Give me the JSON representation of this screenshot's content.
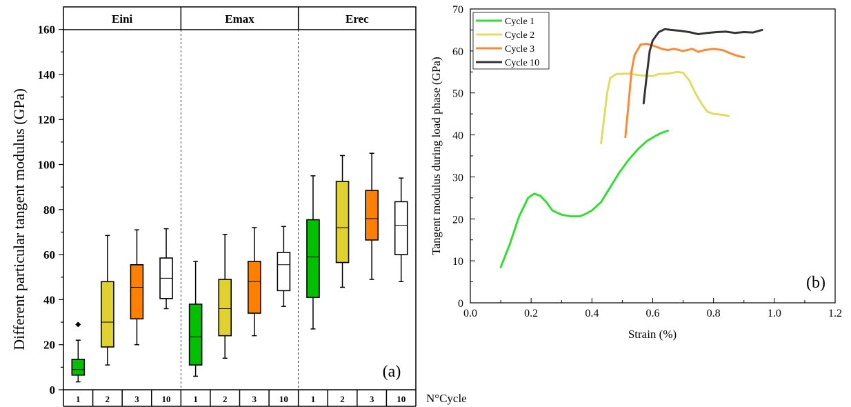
{
  "chart_data": [
    {
      "type": "box",
      "panel_label": "(a)",
      "ylabel": "Different particular tangent modulus (GPa)",
      "xlabel": "N°Cycle",
      "ylim": [
        0,
        170
      ],
      "yticks": [
        0,
        20,
        40,
        60,
        80,
        100,
        120,
        140,
        160
      ],
      "groups": [
        "Eini",
        "Emax",
        "Erec"
      ],
      "cycles": [
        "1",
        "2",
        "3",
        "10"
      ],
      "colors": {
        "1": "#00c000",
        "2": "#e0d030",
        "3": "#ff7f00",
        "10": "#ffffff"
      },
      "boxes": [
        {
          "group": "Eini",
          "cycle": "1",
          "whisker_low": 3.5,
          "q1": 6.5,
          "median": 9,
          "q3": 13.5,
          "whisker_high": 22,
          "outliers": [
            29
          ]
        },
        {
          "group": "Eini",
          "cycle": "2",
          "whisker_low": 11,
          "q1": 19,
          "median": 30,
          "q3": 48,
          "whisker_high": 68.5,
          "outliers": []
        },
        {
          "group": "Eini",
          "cycle": "3",
          "whisker_low": 20,
          "q1": 31.5,
          "median": 45.5,
          "q3": 55.5,
          "whisker_high": 71,
          "outliers": []
        },
        {
          "group": "Eini",
          "cycle": "10",
          "whisker_low": 36,
          "q1": 40.5,
          "median": 49.5,
          "q3": 58.5,
          "whisker_high": 71.5,
          "outliers": []
        },
        {
          "group": "Emax",
          "cycle": "1",
          "whisker_low": 6,
          "q1": 11,
          "median": 23.5,
          "q3": 38,
          "whisker_high": 57,
          "outliers": []
        },
        {
          "group": "Emax",
          "cycle": "2",
          "whisker_low": 14,
          "q1": 24,
          "median": 36,
          "q3": 49,
          "whisker_high": 69,
          "outliers": []
        },
        {
          "group": "Emax",
          "cycle": "3",
          "whisker_low": 24,
          "q1": 34,
          "median": 48,
          "q3": 57,
          "whisker_high": 72,
          "outliers": []
        },
        {
          "group": "Emax",
          "cycle": "10",
          "whisker_low": 37,
          "q1": 44,
          "median": 55.5,
          "q3": 61,
          "whisker_high": 72.5,
          "outliers": []
        },
        {
          "group": "Erec",
          "cycle": "1",
          "whisker_low": 27,
          "q1": 41,
          "median": 59,
          "q3": 75.5,
          "whisker_high": 95,
          "outliers": []
        },
        {
          "group": "Erec",
          "cycle": "2",
          "whisker_low": 45.5,
          "q1": 56.5,
          "median": 72,
          "q3": 92.5,
          "whisker_high": 104,
          "outliers": []
        },
        {
          "group": "Erec",
          "cycle": "3",
          "whisker_low": 49,
          "q1": 66.5,
          "median": 76,
          "q3": 88.5,
          "whisker_high": 105,
          "outliers": []
        },
        {
          "group": "Erec",
          "cycle": "10",
          "whisker_low": 48,
          "q1": 60,
          "median": 73,
          "q3": 83.5,
          "whisker_high": 94,
          "outliers": []
        }
      ]
    },
    {
      "type": "line",
      "panel_label": "(b)",
      "xlabel": "Strain (%)",
      "ylabel": "Tangent modulus during load phase (GPa)",
      "xlim": [
        0,
        1.2
      ],
      "ylim": [
        0,
        70
      ],
      "xticks": [
        "0.0",
        "0.2",
        "0.4",
        "0.6",
        "0.8",
        "1.0",
        "1.2"
      ],
      "yticks": [
        "0",
        "10",
        "20",
        "30",
        "40",
        "50",
        "60",
        "70"
      ],
      "legend_position": "top-left",
      "series": [
        {
          "name": "Cycle 1",
          "color": "#33dd33",
          "x": [
            0.1,
            0.13,
            0.16,
            0.19,
            0.21,
            0.23,
            0.25,
            0.27,
            0.3,
            0.33,
            0.36,
            0.38,
            0.4,
            0.43,
            0.46,
            0.49,
            0.52,
            0.55,
            0.58,
            0.61,
            0.63,
            0.65
          ],
          "y": [
            8.5,
            14,
            20.5,
            25,
            26,
            25.5,
            24,
            22,
            21,
            20.6,
            20.6,
            21.2,
            22,
            24,
            27.5,
            31,
            34,
            36.5,
            38.5,
            39.8,
            40.5,
            41
          ]
        },
        {
          "name": "Cycle 2",
          "color": "#e0dc60",
          "x": [
            0.43,
            0.44,
            0.45,
            0.46,
            0.48,
            0.52,
            0.56,
            0.6,
            0.62,
            0.65,
            0.68,
            0.7,
            0.72,
            0.74,
            0.76,
            0.78,
            0.8,
            0.83,
            0.85
          ],
          "y": [
            38,
            44,
            50,
            53.5,
            54.5,
            54.6,
            54.2,
            54,
            54.5,
            54.6,
            55,
            54.8,
            53,
            50,
            47.5,
            45.5,
            45,
            44.8,
            44.5
          ]
        },
        {
          "name": "Cycle 3",
          "color": "#ff8833",
          "x": [
            0.51,
            0.52,
            0.53,
            0.54,
            0.56,
            0.58,
            0.6,
            0.63,
            0.65,
            0.67,
            0.7,
            0.73,
            0.75,
            0.77,
            0.8,
            0.83,
            0.86,
            0.88,
            0.9
          ],
          "y": [
            39.5,
            47,
            55,
            59,
            61.5,
            61.7,
            61.3,
            60.5,
            60.2,
            60.5,
            60,
            60.5,
            59.8,
            60.2,
            60.5,
            60.2,
            59.3,
            58.8,
            58.5
          ]
        },
        {
          "name": "Cycle 10",
          "color": "#333333",
          "x": [
            0.57,
            0.58,
            0.59,
            0.6,
            0.62,
            0.64,
            0.66,
            0.69,
            0.72,
            0.75,
            0.78,
            0.81,
            0.84,
            0.87,
            0.9,
            0.93,
            0.96
          ],
          "y": [
            47.5,
            54,
            60,
            62.5,
            64.5,
            65.2,
            65,
            64.8,
            64.5,
            64,
            64.3,
            64.5,
            64.6,
            64.3,
            64.5,
            64.4,
            65
          ]
        }
      ]
    }
  ]
}
